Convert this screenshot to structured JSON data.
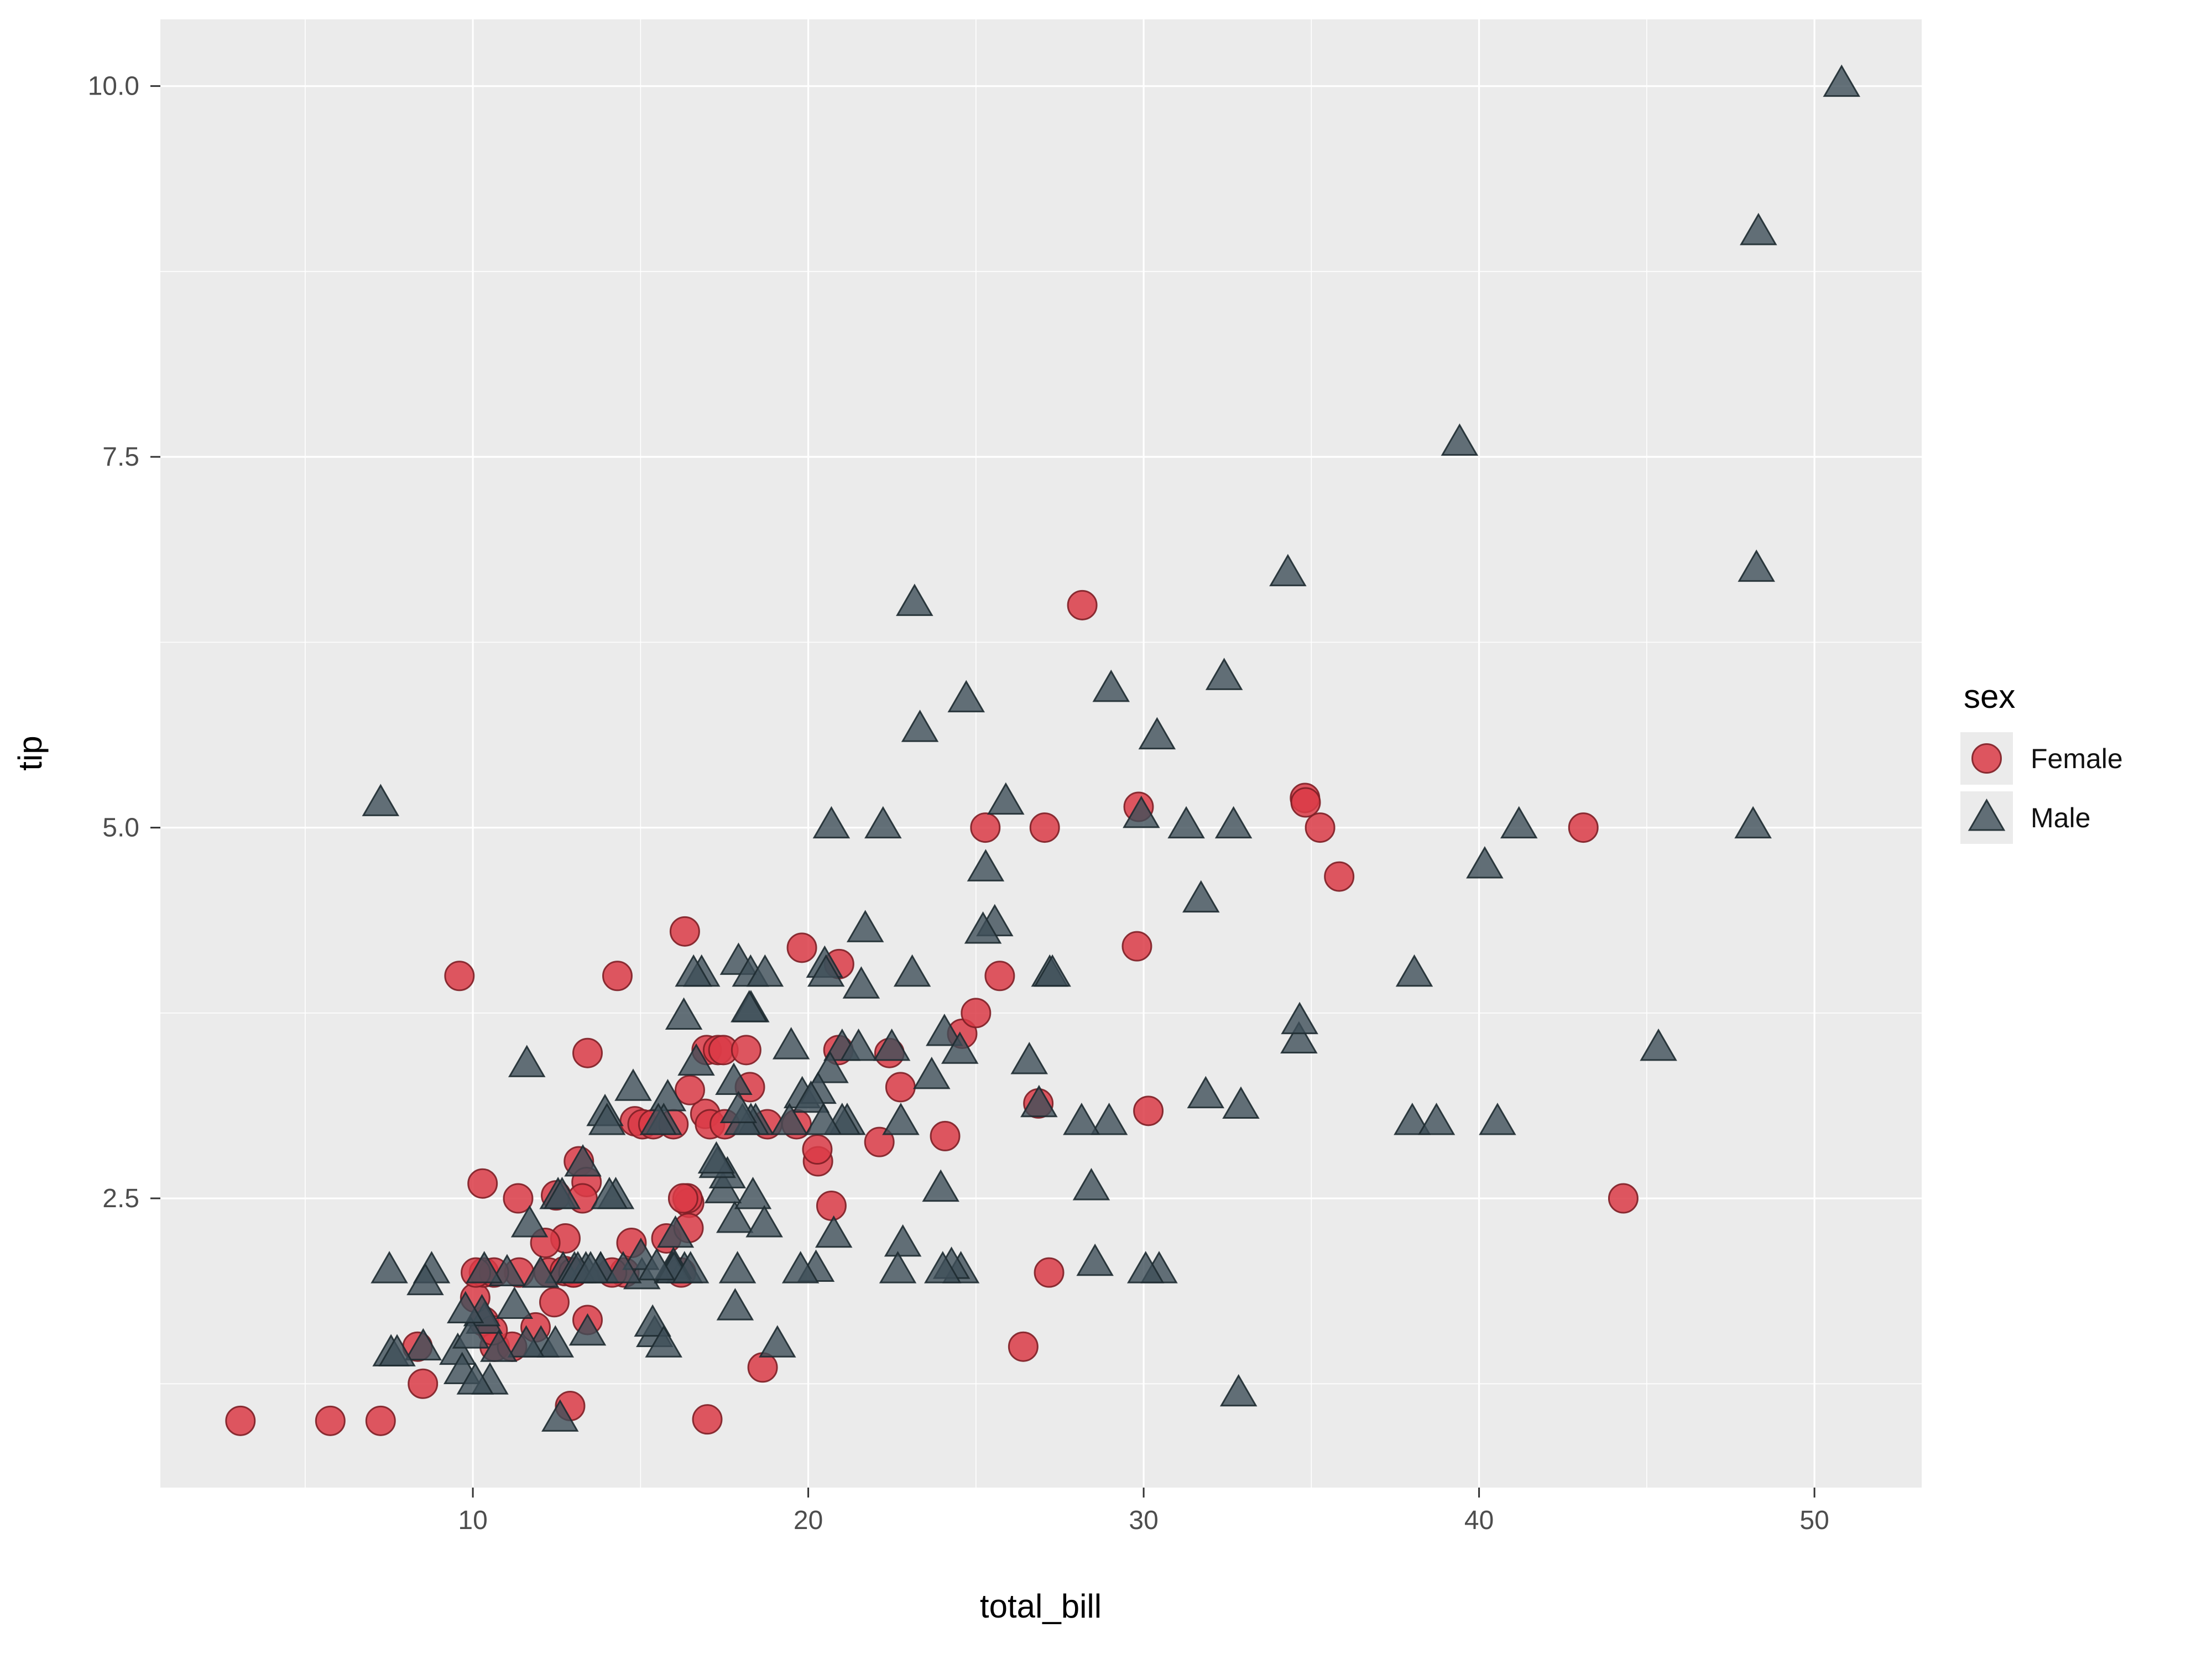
{
  "chart_data": {
    "type": "scatter",
    "title": "",
    "xlabel": "total_bill",
    "ylabel": "tip",
    "legend_title": "sex",
    "legend_position": "right",
    "grid": true,
    "xlim": [
      0.683,
      53.197
    ],
    "ylim": [
      0.55,
      10.45
    ],
    "x_ticks": [
      10,
      20,
      30,
      40,
      50
    ],
    "x_tick_labels": [
      "10",
      "20",
      "30",
      "40",
      "50"
    ],
    "y_ticks": [
      2.5,
      5.0,
      7.5,
      10.0
    ],
    "y_tick_labels": [
      "2.5",
      "5.0",
      "7.5",
      "10.0"
    ],
    "x_minor": [
      5,
      15,
      25,
      35,
      45
    ],
    "y_minor": [
      1.25,
      3.75,
      6.25,
      8.75
    ],
    "colors": {
      "panel_bg": "#ebebeb",
      "grid": "#ffffff",
      "tick": "#333333",
      "tick_label": "#4d4d4d",
      "axis_title": "#000000"
    },
    "series": [
      {
        "name": "Female",
        "marker": "circle",
        "fill": "#db3b46",
        "stroke": "#7e1f26",
        "opacity": 0.85,
        "size": 26,
        "points": [
          [
            16.99,
            1.01
          ],
          [
            24.59,
            3.61
          ],
          [
            35.26,
            5.0
          ],
          [
            14.83,
            3.02
          ],
          [
            10.33,
            1.67
          ],
          [
            16.97,
            3.5
          ],
          [
            20.29,
            2.75
          ],
          [
            15.77,
            2.23
          ],
          [
            19.65,
            3.0
          ],
          [
            15.06,
            3.0
          ],
          [
            20.69,
            2.45
          ],
          [
            16.93,
            3.07
          ],
          [
            10.29,
            2.6
          ],
          [
            34.81,
            5.2
          ],
          [
            26.41,
            1.5
          ],
          [
            16.45,
            2.47
          ],
          [
            3.07,
            1.0
          ],
          [
            17.07,
            3.0
          ],
          [
            26.86,
            3.14
          ],
          [
            25.28,
            5.0
          ],
          [
            14.73,
            2.2
          ],
          [
            10.07,
            1.83
          ],
          [
            34.83,
            5.17
          ],
          [
            5.75,
            1.0
          ],
          [
            16.32,
            4.3
          ],
          [
            22.75,
            3.25
          ],
          [
            11.35,
            2.5
          ],
          [
            15.38,
            3.0
          ],
          [
            44.3,
            2.5
          ],
          [
            22.42,
            3.48
          ],
          [
            20.92,
            4.08
          ],
          [
            14.31,
            4.0
          ],
          [
            7.25,
            1.0
          ],
          [
            25.71,
            4.0
          ],
          [
            17.31,
            3.5
          ],
          [
            10.65,
            1.5
          ],
          [
            12.43,
            1.8
          ],
          [
            24.08,
            2.92
          ],
          [
            13.42,
            1.68
          ],
          [
            12.48,
            2.52
          ],
          [
            29.8,
            4.2
          ],
          [
            14.52,
            2.0
          ],
          [
            11.38,
            2.0
          ],
          [
            20.27,
            2.83
          ],
          [
            11.17,
            1.5
          ],
          [
            12.26,
            2.0
          ],
          [
            18.26,
            3.25
          ],
          [
            8.51,
            1.25
          ],
          [
            10.33,
            2.0
          ],
          [
            14.15,
            2.0
          ],
          [
            13.16,
            2.75
          ],
          [
            17.47,
            3.5
          ],
          [
            27.05,
            5.0
          ],
          [
            16.43,
            2.3
          ],
          [
            8.35,
            1.5
          ],
          [
            18.64,
            1.36
          ],
          [
            11.87,
            1.63
          ],
          [
            29.85,
            5.14
          ],
          [
            25.0,
            3.75
          ],
          [
            13.39,
            2.61
          ],
          [
            16.21,
            2.0
          ],
          [
            17.51,
            3.0
          ],
          [
            10.59,
            1.61
          ],
          [
            10.63,
            2.0
          ],
          [
            9.6,
            4.0
          ],
          [
            20.9,
            3.5
          ],
          [
            18.15,
            3.5
          ],
          [
            19.81,
            4.19
          ],
          [
            43.11,
            5.0
          ],
          [
            13.0,
            2.0
          ],
          [
            12.74,
            2.01
          ],
          [
            13.0,
            2.0
          ],
          [
            16.4,
            2.5
          ],
          [
            16.47,
            3.23
          ],
          [
            12.76,
            2.23
          ],
          [
            13.27,
            2.5
          ],
          [
            28.17,
            6.5
          ],
          [
            12.9,
            1.1
          ],
          [
            30.14,
            3.09
          ],
          [
            12.16,
            2.2
          ],
          [
            13.42,
            3.48
          ],
          [
            15.98,
            3.0
          ],
          [
            16.27,
            2.5
          ],
          [
            10.09,
            2.0
          ],
          [
            22.12,
            2.88
          ],
          [
            35.83,
            4.67
          ],
          [
            27.18,
            2.0
          ],
          [
            18.78,
            3.0
          ]
        ]
      },
      {
        "name": "Male",
        "marker": "triangle",
        "fill": "#3e4f59",
        "stroke": "#1e2b31",
        "opacity": 0.8,
        "size": 36,
        "points": [
          [
            10.34,
            1.66
          ],
          [
            21.01,
            3.5
          ],
          [
            23.68,
            3.31
          ],
          [
            25.29,
            4.71
          ],
          [
            8.77,
            2.0
          ],
          [
            26.88,
            3.12
          ],
          [
            15.04,
            1.96
          ],
          [
            14.78,
            3.23
          ],
          [
            10.27,
            1.71
          ],
          [
            15.42,
            1.57
          ],
          [
            18.43,
            3.0
          ],
          [
            21.58,
            3.92
          ],
          [
            16.29,
            3.71
          ],
          [
            20.65,
            3.35
          ],
          [
            17.92,
            4.08
          ],
          [
            39.42,
            7.58
          ],
          [
            19.82,
            3.18
          ],
          [
            17.81,
            2.34
          ],
          [
            13.37,
            2.0
          ],
          [
            12.69,
            2.0
          ],
          [
            21.7,
            4.3
          ],
          [
            9.55,
            1.45
          ],
          [
            18.35,
            2.5
          ],
          [
            17.78,
            3.27
          ],
          [
            24.06,
            3.6
          ],
          [
            16.31,
            2.0
          ],
          [
            18.69,
            2.31
          ],
          [
            31.27,
            5.0
          ],
          [
            16.04,
            2.24
          ],
          [
            17.46,
            2.54
          ],
          [
            13.94,
            3.06
          ],
          [
            9.68,
            1.32
          ],
          [
            30.4,
            5.6
          ],
          [
            18.29,
            3.0
          ],
          [
            22.23,
            5.0
          ],
          [
            32.4,
            6.0
          ],
          [
            28.55,
            2.05
          ],
          [
            18.04,
            3.0
          ],
          [
            12.54,
            2.5
          ],
          [
            9.94,
            1.56
          ],
          [
            25.56,
            4.34
          ],
          [
            19.49,
            3.51
          ],
          [
            38.01,
            3.0
          ],
          [
            11.24,
            1.76
          ],
          [
            48.27,
            6.73
          ],
          [
            20.29,
            3.21
          ],
          [
            13.81,
            2.0
          ],
          [
            11.02,
            1.98
          ],
          [
            18.29,
            3.76
          ],
          [
            17.59,
            2.64
          ],
          [
            20.08,
            3.15
          ],
          [
            20.23,
            2.01
          ],
          [
            15.01,
            2.09
          ],
          [
            12.02,
            1.97
          ],
          [
            10.51,
            1.25
          ],
          [
            17.92,
            3.08
          ],
          [
            27.2,
            4.0
          ],
          [
            22.76,
            3.0
          ],
          [
            17.29,
            2.71
          ],
          [
            19.44,
            3.0
          ],
          [
            16.66,
            3.4
          ],
          [
            32.68,
            5.0
          ],
          [
            15.98,
            2.03
          ],
          [
            13.03,
            2.0
          ],
          [
            18.28,
            4.0
          ],
          [
            24.71,
            5.85
          ],
          [
            21.16,
            3.0
          ],
          [
            28.97,
            3.0
          ],
          [
            22.49,
            3.5
          ],
          [
            40.17,
            4.73
          ],
          [
            27.28,
            4.0
          ],
          [
            12.03,
            1.5
          ],
          [
            21.01,
            3.0
          ],
          [
            12.46,
            1.5
          ],
          [
            15.36,
            1.64
          ],
          [
            20.49,
            4.06
          ],
          [
            25.21,
            4.29
          ],
          [
            18.24,
            3.76
          ],
          [
            14.0,
            3.0
          ],
          [
            38.07,
            4.0
          ],
          [
            23.95,
            2.55
          ],
          [
            29.93,
            5.07
          ],
          [
            11.69,
            2.31
          ],
          [
            14.26,
            2.5
          ],
          [
            15.95,
            2.0
          ],
          [
            8.52,
            1.48
          ],
          [
            22.82,
            2.18
          ],
          [
            19.08,
            1.5
          ],
          [
            16.0,
            2.0
          ],
          [
            34.3,
            6.7
          ],
          [
            41.19,
            5.0
          ],
          [
            9.78,
            1.73
          ],
          [
            7.51,
            2.0
          ],
          [
            14.07,
            2.5
          ],
          [
            13.13,
            2.0
          ],
          [
            17.26,
            2.74
          ],
          [
            24.55,
            2.0
          ],
          [
            19.77,
            2.0
          ],
          [
            48.17,
            5.0
          ],
          [
            16.49,
            2.0
          ],
          [
            21.5,
            3.5
          ],
          [
            12.66,
            2.5
          ],
          [
            13.81,
            2.0
          ],
          [
            24.52,
            3.48
          ],
          [
            20.76,
            2.24
          ],
          [
            31.71,
            4.5
          ],
          [
            50.81,
            10.0
          ],
          [
            15.81,
            3.16
          ],
          [
            7.25,
            5.15
          ],
          [
            31.85,
            3.18
          ],
          [
            16.82,
            4.0
          ],
          [
            32.9,
            3.11
          ],
          [
            17.89,
            2.0
          ],
          [
            14.48,
            2.0
          ],
          [
            34.63,
            3.55
          ],
          [
            34.65,
            3.68
          ],
          [
            23.33,
            5.65
          ],
          [
            45.35,
            3.5
          ],
          [
            23.17,
            6.5
          ],
          [
            40.55,
            3.0
          ],
          [
            20.69,
            5.0
          ],
          [
            30.46,
            2.0
          ],
          [
            23.1,
            4.0
          ],
          [
            15.69,
            1.5
          ],
          [
            28.44,
            2.56
          ],
          [
            15.48,
            2.02
          ],
          [
            16.58,
            4.0
          ],
          [
            7.56,
            1.44
          ],
          [
            10.34,
            2.0
          ],
          [
            13.51,
            2.0
          ],
          [
            18.71,
            4.0
          ],
          [
            20.53,
            4.0
          ],
          [
            26.59,
            3.41
          ],
          [
            38.73,
            3.0
          ],
          [
            24.27,
            2.03
          ],
          [
            30.06,
            2.0
          ],
          [
            25.89,
            5.16
          ],
          [
            48.33,
            9.0
          ],
          [
            28.15,
            3.0
          ],
          [
            11.59,
            1.5
          ],
          [
            7.74,
            1.44
          ],
          [
            8.58,
            1.92
          ],
          [
            13.42,
            1.58
          ],
          [
            20.45,
            3.0
          ],
          [
            13.28,
            2.72
          ],
          [
            24.01,
            2.0
          ],
          [
            15.69,
            3.0
          ],
          [
            11.61,
            3.39
          ],
          [
            10.77,
            1.47
          ],
          [
            15.53,
            3.0
          ],
          [
            10.07,
            1.25
          ],
          [
            12.6,
            1.0
          ],
          [
            32.83,
            1.17
          ],
          [
            29.03,
            5.92
          ],
          [
            22.67,
            2.0
          ],
          [
            17.82,
            1.75
          ]
        ]
      }
    ]
  }
}
